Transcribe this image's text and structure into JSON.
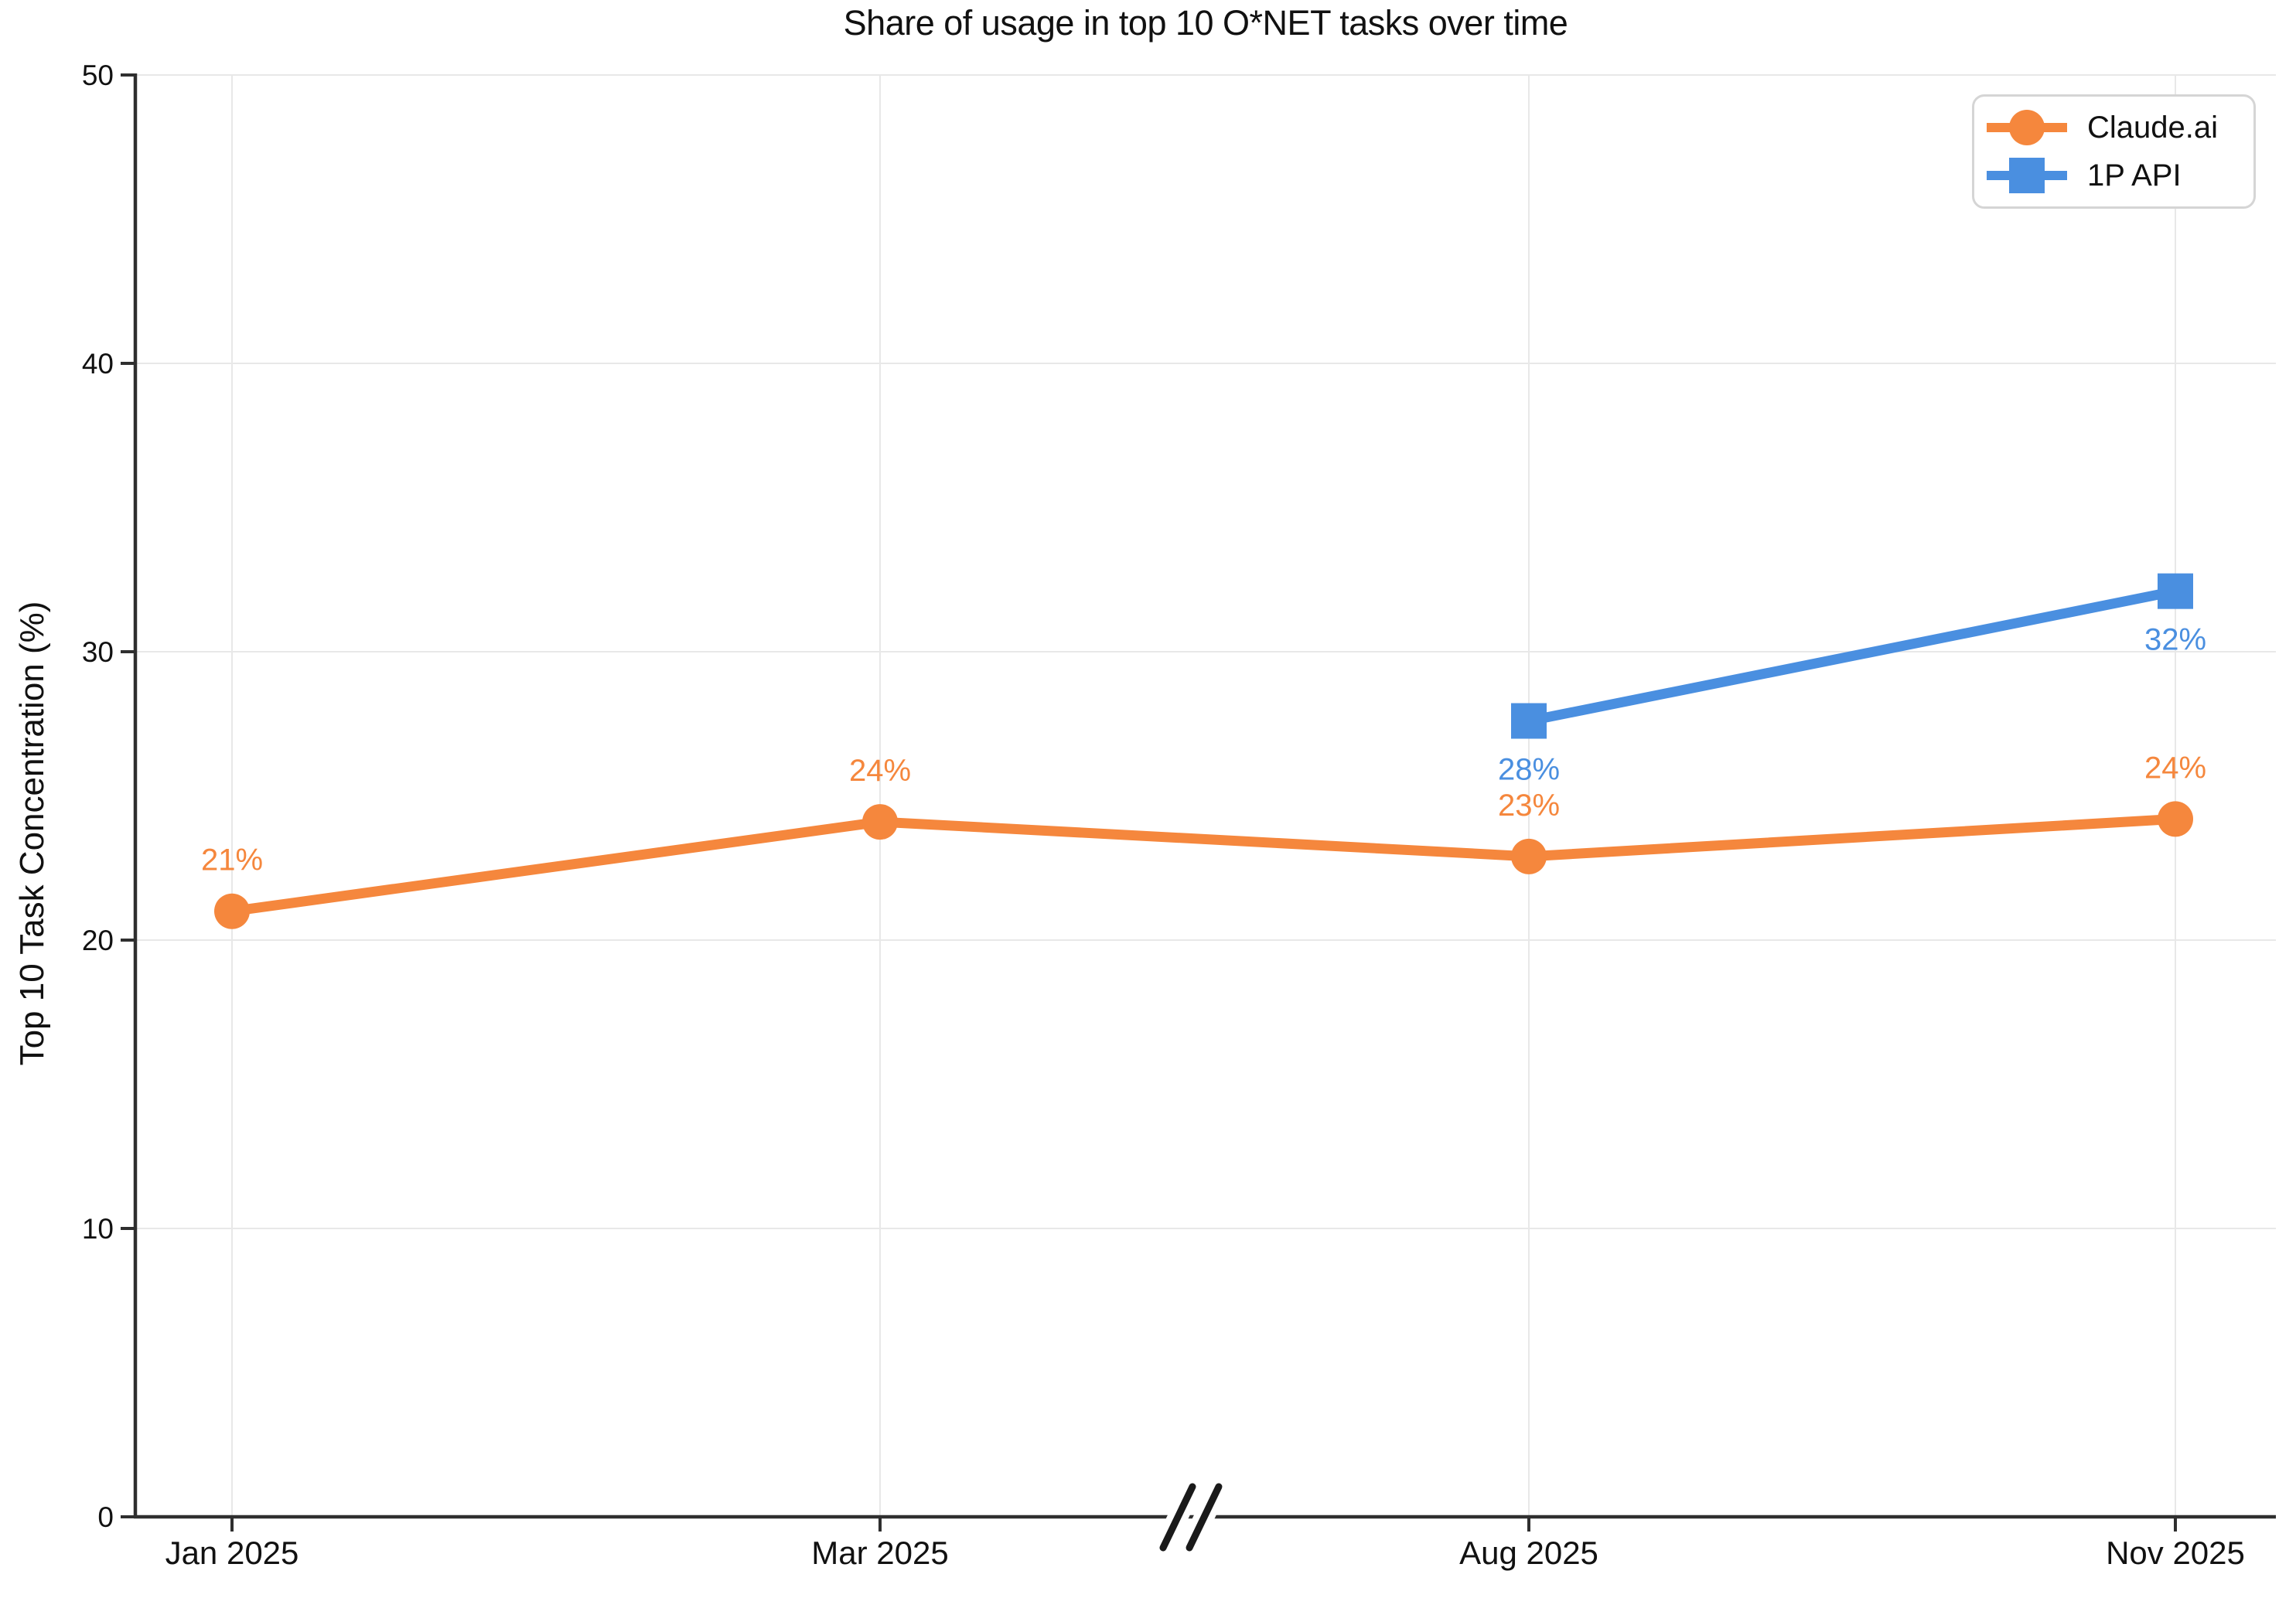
{
  "chart_data": {
    "type": "line",
    "title": "Share of usage in top 10 O*NET tasks over time",
    "ylabel": "Top 10 Task Concentration (%)",
    "xlabel": "",
    "categories": [
      "Jan 2025",
      "Mar 2025",
      "Aug 2025",
      "Nov 2025"
    ],
    "y_ticks": [
      0,
      10,
      20,
      30,
      40,
      50
    ],
    "ylim": [
      0,
      50
    ],
    "grid": true,
    "x_axis_break": {
      "between": [
        "Mar 2025",
        "Aug 2025"
      ],
      "symbol": "//"
    },
    "legend_position": "top-right",
    "series": [
      {
        "name": "Claude.ai",
        "color": "#F5873D",
        "marker": "circle",
        "label_side": "above",
        "x": [
          "Jan 2025",
          "Mar 2025",
          "Aug 2025",
          "Nov 2025"
        ],
        "x_indices": [
          0,
          1,
          2,
          3
        ],
        "values": [
          21,
          24,
          23,
          24
        ],
        "values_precise": [
          21.0,
          24.1,
          22.9,
          24.2
        ],
        "labels": [
          "21%",
          "24%",
          "23%",
          "24%"
        ]
      },
      {
        "name": "1P API",
        "color": "#4A8FE0",
        "marker": "square",
        "label_side": "below",
        "x": [
          "Aug 2025",
          "Nov 2025"
        ],
        "x_indices": [
          2,
          3
        ],
        "values": [
          28,
          32
        ],
        "values_precise": [
          27.6,
          32.1
        ],
        "labels": [
          "28%",
          "32%"
        ]
      }
    ],
    "colors": {
      "grid": "#E8E8E8",
      "axis": "#2F2F2F",
      "text": "#111111",
      "break_symbol": "#1A1A1A",
      "legend_border": "#D5D5D5",
      "background": "#FFFFFF"
    }
  }
}
